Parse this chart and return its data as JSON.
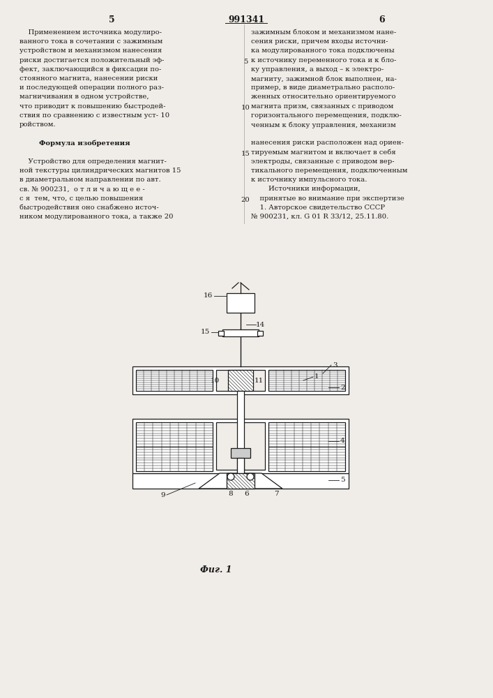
{
  "page_number_left": "5",
  "page_number_right": "6",
  "patent_number": "991341",
  "bg_color": "#f0ede8",
  "text_color": "#1a1a1a",
  "left_column_lines": [
    "    Применением источника модулиро-",
    "ванного тока в сочетании с зажимным",
    "устройством и механизмом нанесения",
    "риски достигается положительный эф-",
    "фект, заключающийся в фиксации по-",
    "стоянного магнита, нанесении риски",
    "и последующей операции полного раз-",
    "магничивания в одном устройстве,",
    "что приводит к повышению быстродей-",
    "ствия по сравнению с известным уст- 10",
    "ройством.",
    "",
    "        Формула изобретения",
    "",
    "    Устройство для определения магнит-",
    "ной текстуры цилиндрических магнитов 15",
    "в диаметральном направлении по авт.",
    "св. № 900231,  о т л и ч а ю щ е е -",
    "с я  тем, что, с целью повышения",
    "быстродействия оно снабжено источ-",
    "ником модулированного тока, а также 20"
  ],
  "right_column_lines": [
    "зажимным блоком и механизмом нане-",
    "сения риски, причем входы источни-",
    "ка модулированного тока подключены",
    "к источнику переменного тока и к бло-",
    "ку управления, а выход – к электро-",
    "магниту, зажимной блок выполнен, на-",
    "пример, в виде диаметрально располо-",
    "женных относительно ориентируемого",
    "магнита призм, связанных с приводом",
    "горизонтального перемещения, подклю-",
    "ченным к блоку управления, механизм",
    "",
    "нанесения риски расположен над ориен-",
    "тируемым магнитом и включает в себя",
    "электроды, связанные с приводом вер-",
    "тикального перемещения, подключенным",
    "к источнику импульсного тока.",
    "        Источники информации,",
    "    принятые во внимание при экспертизе",
    "    1. Авторское свидетельство СССР",
    "№ 900231, кл. G 01 R 33/12, 25.11.80."
  ],
  "fig_caption": "Фиг. 1"
}
